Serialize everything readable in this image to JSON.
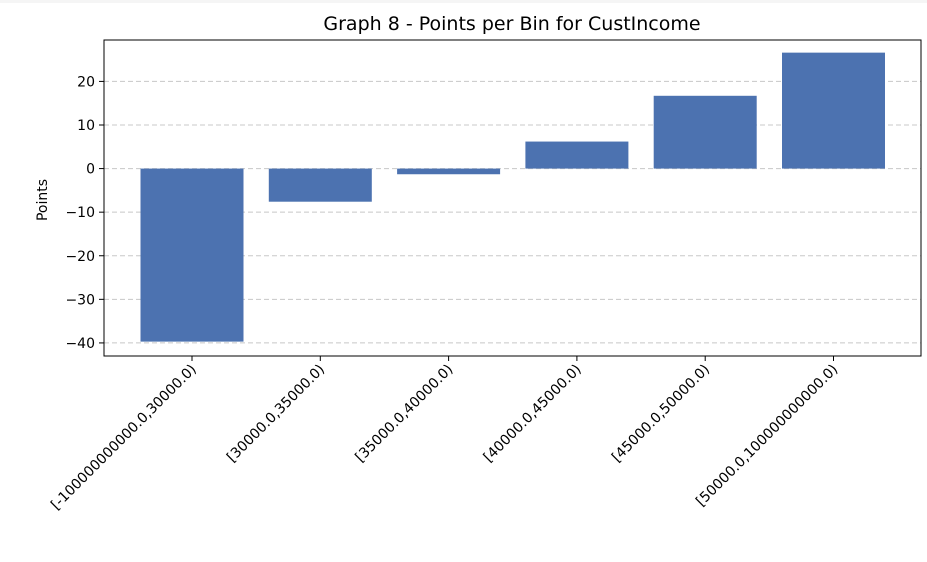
{
  "chart_data": {
    "type": "bar",
    "title": "Graph 8 - Points per Bin for CustIncome",
    "xlabel": "",
    "ylabel": "Points",
    "categories": [
      "[-100000000000.0,30000.0)",
      "[30000.0,35000.0)",
      "[35000.0,40000.0)",
      "[40000.0,45000.0)",
      "[45000.0,50000.0)",
      "[50000.0,100000000000.0)"
    ],
    "values": [
      -39.7,
      -7.6,
      -1.3,
      6.2,
      16.7,
      26.6
    ],
    "ylim": [
      -43,
      29.5
    ],
    "yticks": [
      -40,
      -30,
      -20,
      -10,
      0,
      10,
      20
    ],
    "ytick_labels": [
      "−40",
      "−30",
      "−20",
      "−10",
      "0",
      "10",
      "20"
    ],
    "grid": "y-dashed",
    "bar_color": "#4c72b0",
    "grid_color": "#c8c8c8"
  }
}
